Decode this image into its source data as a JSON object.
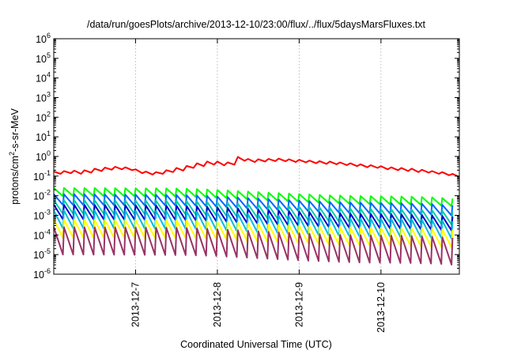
{
  "chart_data": {
    "type": "line",
    "title": "/data/run/goesPlots/archive/2013-12-10/23:00/flux/../flux/5daysMarsFluxes.txt",
    "xlabel": "Coordinated Universal Time (UTC)",
    "ylabel": {
      "prefix": "protons/cm",
      "sup": "2",
      "suffix": "-s-sr-MeV"
    },
    "y_scale": "log",
    "ylim": [
      1e-06,
      1000000.0
    ],
    "y_ticks": [
      {
        "value": 1e-06,
        "base": "10",
        "exp": "-6"
      },
      {
        "value": 1e-05,
        "base": "10",
        "exp": "-5"
      },
      {
        "value": 0.0001,
        "base": "10",
        "exp": "-4"
      },
      {
        "value": 0.001,
        "base": "10",
        "exp": "-3"
      },
      {
        "value": 0.01,
        "base": "10",
        "exp": "-2"
      },
      {
        "value": 0.1,
        "base": "10",
        "exp": "-1"
      },
      {
        "value": 1.0,
        "base": "10",
        "exp": "0"
      },
      {
        "value": 10.0,
        "base": "10",
        "exp": "1"
      },
      {
        "value": 100.0,
        "base": "10",
        "exp": "2"
      },
      {
        "value": 1000.0,
        "base": "10",
        "exp": "3"
      },
      {
        "value": 10000.0,
        "base": "10",
        "exp": "4"
      },
      {
        "value": 100000.0,
        "base": "10",
        "exp": "5"
      },
      {
        "value": 1000000.0,
        "base": "10",
        "exp": "6"
      }
    ],
    "xlim": [
      "2013-12-06T00:00",
      "2013-12-10T23:00"
    ],
    "x_ticks": [
      {
        "value": "2013-12-07T00:00",
        "label": "2013-12-7"
      },
      {
        "value": "2013-12-08T00:00",
        "label": "2013-12-8"
      },
      {
        "value": "2013-12-09T00:00",
        "label": "2013-12-9"
      },
      {
        "value": "2013-12-10T00:00",
        "label": "2013-12-10"
      }
    ],
    "grid": true,
    "legend": "none",
    "series": [
      {
        "color": "#ff0000",
        "values": [
          [
            "2013-12-06T00:00",
            0.17
          ],
          [
            "2013-12-06T02:00",
            0.13
          ],
          [
            "2013-12-06T03:00",
            0.18
          ],
          [
            "2013-12-06T05:00",
            0.14
          ],
          [
            "2013-12-06T06:00",
            0.19
          ],
          [
            "2013-12-06T08:00",
            0.13
          ],
          [
            "2013-12-06T09:00",
            0.2
          ],
          [
            "2013-12-06T11:00",
            0.15
          ],
          [
            "2013-12-06T12:00",
            0.24
          ],
          [
            "2013-12-06T14:00",
            0.18
          ],
          [
            "2013-12-06T15:00",
            0.27
          ],
          [
            "2013-12-06T17:00",
            0.21
          ],
          [
            "2013-12-06T18:00",
            0.3
          ],
          [
            "2013-12-06T20:00",
            0.22
          ],
          [
            "2013-12-06T21:00",
            0.28
          ],
          [
            "2013-12-06T23:00",
            0.2
          ],
          [
            "2013-12-07T00:00",
            0.22
          ],
          [
            "2013-12-07T02:00",
            0.14
          ],
          [
            "2013-12-07T03:00",
            0.17
          ],
          [
            "2013-12-07T05:00",
            0.12
          ],
          [
            "2013-12-07T06:00",
            0.16
          ],
          [
            "2013-12-07T08:00",
            0.13
          ],
          [
            "2013-12-07T09:00",
            0.2
          ],
          [
            "2013-12-07T11:00",
            0.16
          ],
          [
            "2013-12-07T12:00",
            0.26
          ],
          [
            "2013-12-07T14:00",
            0.19
          ],
          [
            "2013-12-07T15:00",
            0.33
          ],
          [
            "2013-12-07T17:00",
            0.26
          ],
          [
            "2013-12-07T18:00",
            0.45
          ],
          [
            "2013-12-07T20:00",
            0.32
          ],
          [
            "2013-12-07T21:00",
            0.55
          ],
          [
            "2013-12-07T23:00",
            0.38
          ],
          [
            "2013-12-08T00:00",
            0.55
          ],
          [
            "2013-12-08T02:00",
            0.35
          ],
          [
            "2013-12-08T03:00",
            0.5
          ],
          [
            "2013-12-08T05:00",
            0.38
          ],
          [
            "2013-12-08T06:00",
            0.95
          ],
          [
            "2013-12-08T08:00",
            0.6
          ],
          [
            "2013-12-08T09:00",
            0.75
          ],
          [
            "2013-12-08T11:00",
            0.52
          ],
          [
            "2013-12-08T12:00",
            0.72
          ],
          [
            "2013-12-08T14:00",
            0.55
          ],
          [
            "2013-12-08T15:00",
            0.75
          ],
          [
            "2013-12-08T17:00",
            0.58
          ],
          [
            "2013-12-08T18:00",
            0.78
          ],
          [
            "2013-12-08T20:00",
            0.57
          ],
          [
            "2013-12-08T21:00",
            0.72
          ],
          [
            "2013-12-08T23:00",
            0.52
          ],
          [
            "2013-12-09T00:00",
            0.68
          ],
          [
            "2013-12-09T02:00",
            0.5
          ],
          [
            "2013-12-09T03:00",
            0.62
          ],
          [
            "2013-12-09T05:00",
            0.45
          ],
          [
            "2013-12-09T06:00",
            0.58
          ],
          [
            "2013-12-09T08:00",
            0.42
          ],
          [
            "2013-12-09T09:00",
            0.55
          ],
          [
            "2013-12-09T11:00",
            0.4
          ],
          [
            "2013-12-09T12:00",
            0.5
          ],
          [
            "2013-12-09T14:00",
            0.36
          ],
          [
            "2013-12-09T15:00",
            0.45
          ],
          [
            "2013-12-09T17:00",
            0.32
          ],
          [
            "2013-12-09T18:00",
            0.4
          ],
          [
            "2013-12-09T20:00",
            0.28
          ],
          [
            "2013-12-09T21:00",
            0.36
          ],
          [
            "2013-12-09T23:00",
            0.26
          ],
          [
            "2013-12-10T00:00",
            0.32
          ],
          [
            "2013-12-10T02:00",
            0.22
          ],
          [
            "2013-12-10T03:00",
            0.28
          ],
          [
            "2013-12-10T05:00",
            0.2
          ],
          [
            "2013-12-10T06:00",
            0.26
          ],
          [
            "2013-12-10T08:00",
            0.18
          ],
          [
            "2013-12-10T09:00",
            0.24
          ],
          [
            "2013-12-10T11:00",
            0.16
          ],
          [
            "2013-12-10T12:00",
            0.21
          ],
          [
            "2013-12-10T14:00",
            0.15
          ],
          [
            "2013-12-10T15:00",
            0.18
          ],
          [
            "2013-12-10T17:00",
            0.13
          ],
          [
            "2013-12-10T18:00",
            0.16
          ],
          [
            "2013-12-10T20:00",
            0.11
          ],
          [
            "2013-12-10T21:00",
            0.13
          ],
          [
            "2013-12-10T23:00",
            0.09
          ]
        ]
      },
      {
        "color": "#00ff00",
        "envelope": [
          0.025,
          0.01
        ],
        "trough_factor": 0.38
      },
      {
        "color": "#0066ff",
        "envelope": [
          0.012,
          0.0045
        ],
        "trough_factor": 0.28
      },
      {
        "color": "#00ccaa",
        "envelope": [
          0.006,
          0.0022
        ],
        "trough_factor": 0.2
      },
      {
        "color": "#0000cc",
        "envelope": [
          0.0035,
          0.0012
        ],
        "trough_factor": 0.18
      },
      {
        "color": "#00bbdd",
        "envelope": [
          0.0018,
          0.0007
        ],
        "trough_factor": 0.12
      },
      {
        "color": "#ffff00",
        "envelope": [
          0.0006,
          0.00025
        ],
        "trough_factor": 0.12
      },
      {
        "color": "#993366",
        "envelope": [
          0.00025,
          0.0001
        ],
        "trough_factor": 0.04
      }
    ],
    "cycle_hours": 3,
    "envelope_shape": [
      1.0,
      1.05,
      1.1,
      1.15,
      1.2,
      1.25,
      1.2,
      1.1,
      1.0,
      0.92,
      0.85,
      0.8,
      0.78,
      0.8,
      0.82,
      0.8,
      0.72
    ]
  }
}
